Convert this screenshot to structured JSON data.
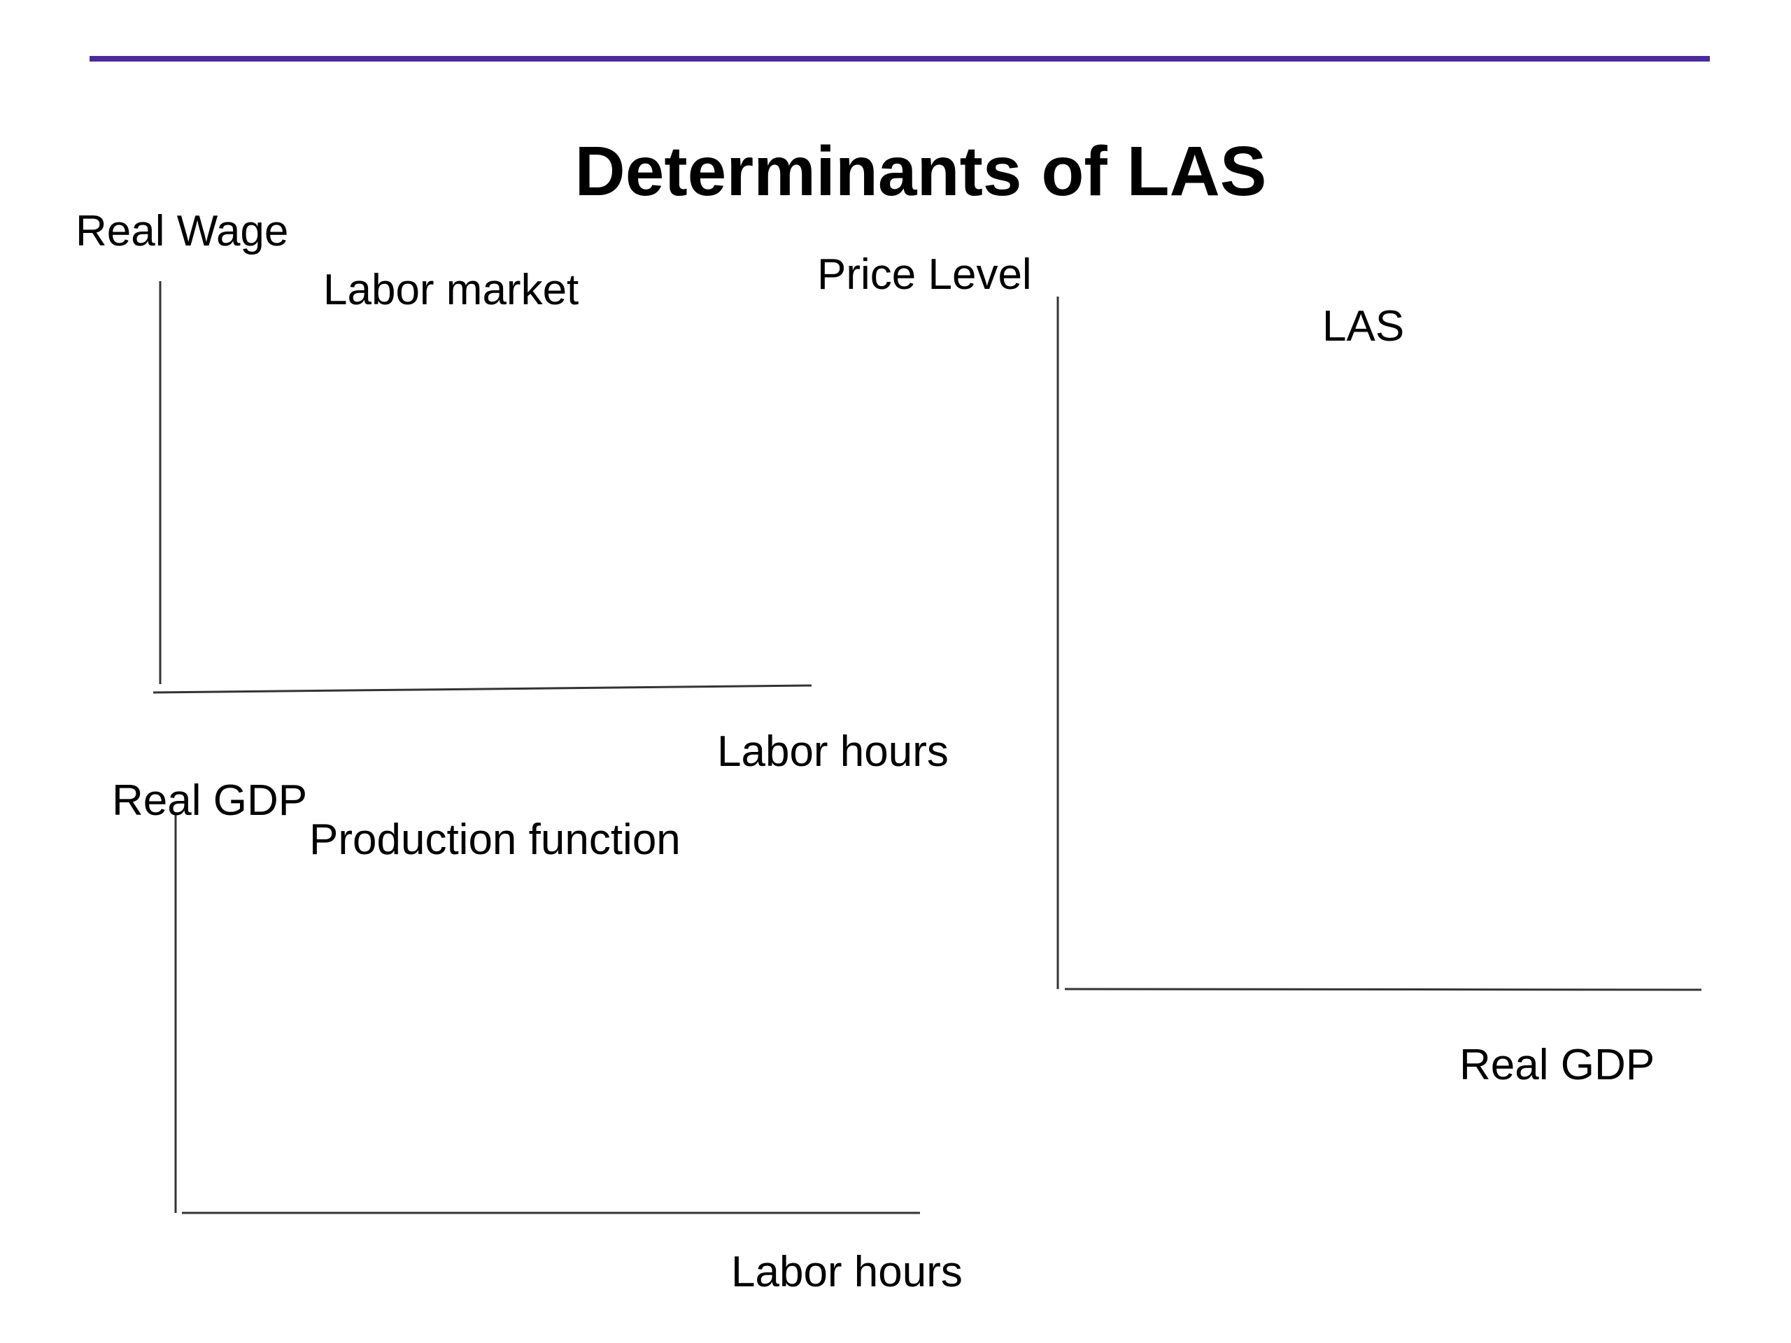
{
  "slide": {
    "title": "Determinants of LAS"
  },
  "colors": {
    "rule": "#4b2c9c",
    "axis": "#333333"
  },
  "panels": {
    "labor_market": {
      "title": "Labor market",
      "y_axis_label": "Real Wage",
      "x_axis_label": "Labor hours"
    },
    "production_function": {
      "title": "Production function",
      "y_axis_label": "Real GDP",
      "x_axis_label": "Labor hours"
    },
    "las": {
      "title": "LAS",
      "y_axis_label": "Price Level",
      "x_axis_label": "Real GDP"
    }
  }
}
